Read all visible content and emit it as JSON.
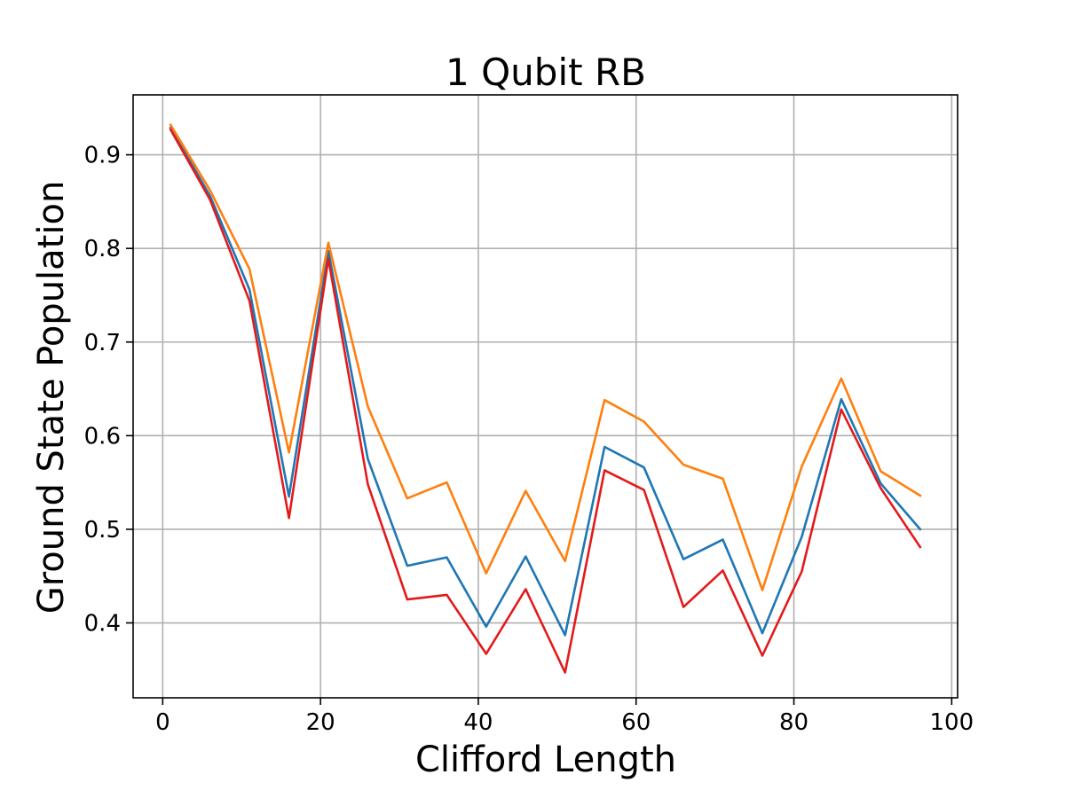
{
  "chart_data": {
    "type": "line",
    "title": "1 Qubit RB",
    "xlabel": "Clifford Length",
    "ylabel": "Ground State Population",
    "xlim": [
      -3.75,
      100.75
    ],
    "ylim": [
      0.32,
      0.964
    ],
    "xticks": [
      0,
      20,
      40,
      60,
      80,
      100
    ],
    "yticks": [
      0.4,
      0.5,
      0.6,
      0.7,
      0.8,
      0.9
    ],
    "xtick_labels": [
      "0",
      "20",
      "40",
      "60",
      "80",
      "100"
    ],
    "ytick_labels": [
      "0.4",
      "0.5",
      "0.6",
      "0.7",
      "0.8",
      "0.9"
    ],
    "grid": true,
    "x": [
      1,
      6,
      11,
      16,
      21,
      26,
      31,
      36,
      41,
      46,
      51,
      56,
      61,
      66,
      71,
      76,
      81,
      86,
      91,
      96
    ],
    "series": [
      {
        "color": "#1f77b4",
        "values": [
          0.929,
          0.856,
          0.756,
          0.535,
          0.797,
          0.575,
          0.461,
          0.47,
          0.396,
          0.471,
          0.387,
          0.588,
          0.566,
          0.468,
          0.489,
          0.389,
          0.492,
          0.639,
          0.549,
          0.5
        ]
      },
      {
        "color": "#ff7f0e",
        "values": [
          0.932,
          0.862,
          0.778,
          0.582,
          0.806,
          0.631,
          0.533,
          0.55,
          0.453,
          0.541,
          0.466,
          0.638,
          0.615,
          0.569,
          0.554,
          0.435,
          0.567,
          0.661,
          0.562,
          0.536
        ]
      },
      {
        "color": "#e31a1c",
        "values": [
          0.927,
          0.852,
          0.744,
          0.512,
          0.789,
          0.548,
          0.425,
          0.43,
          0.367,
          0.436,
          0.347,
          0.563,
          0.542,
          0.417,
          0.456,
          0.365,
          0.455,
          0.628,
          0.544,
          0.481
        ]
      }
    ]
  }
}
